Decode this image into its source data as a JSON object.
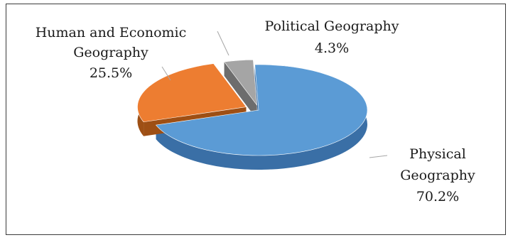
{
  "chart_data": {
    "type": "pie",
    "style": "3d-exploded",
    "title": "",
    "slices": [
      {
        "label": "Physical Geography",
        "label_lines": [
          "Physical",
          "Geography"
        ],
        "value": 70.2,
        "value_label": "70.2%",
        "color": "#5b9bd5",
        "side_color": "#3a6fa6",
        "exploded": false
      },
      {
        "label": "Human and Economic Geography",
        "label_lines": [
          "Human and Economic",
          "Geography"
        ],
        "value": 25.5,
        "value_label": "25.5%",
        "color": "#ed7d31",
        "side_color": "#9e4f14",
        "exploded": true
      },
      {
        "label": "Political Geography",
        "label_lines": [
          "Political Geography"
        ],
        "value": 4.3,
        "value_label": "4.3%",
        "color": "#a5a5a5",
        "side_color": "#6d6d6d",
        "exploded": true
      }
    ],
    "legend": "none",
    "leader_line_color": "#a6a6a6"
  }
}
